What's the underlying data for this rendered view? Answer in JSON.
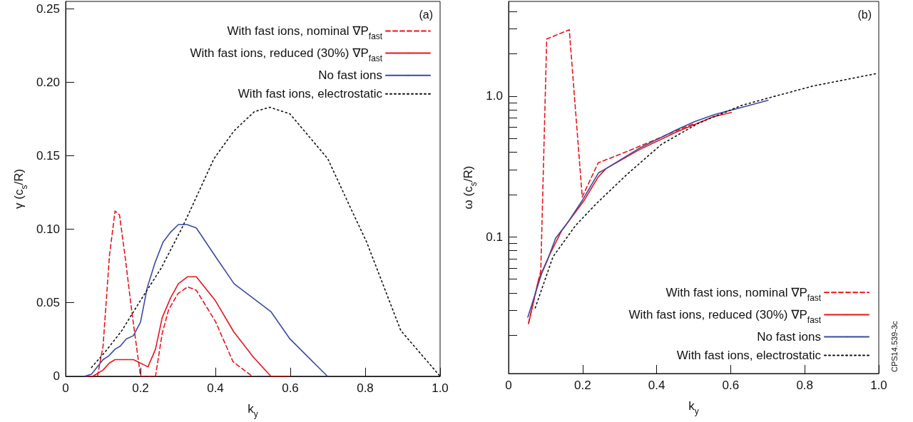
{
  "chart_data": [
    {
      "type": "line",
      "xlabel": "k$_{y}$",
      "ylabel": "γ (c$_{s}$/R)",
      "annotations": [
        "(a)"
      ],
      "xlim": [
        0,
        1
      ],
      "ylim": [
        0,
        0.255
      ],
      "xticks": [
        0,
        {
          "value": 0.2,
          "label": "0.2"
        },
        {
          "value": 0.4,
          "label": "0.4"
        },
        {
          "value": 0.6,
          "label": "0.6"
        },
        {
          "value": 0.8,
          "label": "0.8"
        },
        {
          "value": 1,
          "label": "1.0"
        }
      ],
      "yticks": [
        0,
        0.05,
        {
          "value": 0.1,
          "label": "0.10"
        },
        0.15,
        {
          "value": 0.2,
          "label": "0.20"
        },
        0.25
      ],
      "grid": false,
      "legend": "top right",
      "marker": "none",
      "series": [
        {
          "name": "With fast ions, nominal ∇P$_{fast}$",
          "color": "#e8141b",
          "line_style": "dashed",
          "x": [
            0.085,
            0.1,
            0.117,
            0.132,
            0.144,
            0.16,
            0.177,
            0.2,
            0.24,
            0.258,
            0.275,
            0.3,
            0.326,
            0.349,
            0.4,
            0.447,
            0.498
          ],
          "values": [
            0,
            0.0205,
            0.082,
            0.1124,
            0.1097,
            0.079,
            0.0435,
            0,
            0,
            0.0293,
            0.0452,
            0.0562,
            0.0608,
            0.0585,
            0.0373,
            0.0099,
            0
          ]
        },
        {
          "name": "With fast ions, reduced (30%) ∇P$_{fast}$",
          "color": "#e8141b",
          "line_style": "solid",
          "x": [
            0.053,
            0.073,
            0.1,
            0.117,
            0.132,
            0.181,
            0.22,
            0.24,
            0.258,
            0.281,
            0.301,
            0.326,
            0.349,
            0.4,
            0.449,
            0.501,
            0.548,
            0.599
          ],
          "values": [
            0,
            0,
            0.0042,
            0.009,
            0.0113,
            0.0113,
            0.0064,
            0.0184,
            0.04,
            0.0537,
            0.0629,
            0.0677,
            0.0677,
            0.0514,
            0.0302,
            0.0131,
            0,
            0
          ]
        },
        {
          "name": "No fast ions",
          "color": "#3b4aa3",
          "line_style": "solid",
          "x": [
            0.051,
            0.069,
            0.1,
            0.115,
            0.132,
            0.146,
            0.162,
            0.181,
            0.2,
            0.218,
            0.238,
            0.26,
            0.281,
            0.301,
            0.324,
            0.349,
            0.4,
            0.45,
            0.548,
            0.599,
            0.699
          ],
          "values": [
            0,
            0.0014,
            0.0113,
            0.0138,
            0.0184,
            0.0205,
            0.0254,
            0.0276,
            0.0368,
            0.0603,
            0.0767,
            0.0912,
            0.0982,
            0.1032,
            0.1032,
            0.1009,
            0.0815,
            0.0629,
            0.044,
            0.0254,
            0
          ]
        },
        {
          "name": "With fast ions, electrostatic",
          "color": "#111111",
          "line_style": "dotted",
          "x": [
            0.069,
            0.107,
            0.15,
            0.201,
            0.255,
            0.309,
            0.336,
            0.396,
            0.45,
            0.504,
            0.545,
            0.599,
            0.7,
            0.76,
            0.804,
            0.895,
            1.0
          ],
          "values": [
            0.006,
            0.017,
            0.031,
            0.052,
            0.0735,
            0.1,
            0.1146,
            0.148,
            0.167,
            0.18,
            0.183,
            0.1785,
            0.148,
            0.115,
            0.0912,
            0.0311,
            0
          ]
        }
      ]
    },
    {
      "type": "line",
      "xlabel": "k$_{y}$",
      "ylabel": "ω (c$_{s}$/R)",
      "annotations": [
        "(b)",
        "CPS14.539-3c"
      ],
      "xlim": [
        0,
        1
      ],
      "ylim": [
        0.0107,
        4.7
      ],
      "log": "y",
      "xticks": [
        0,
        {
          "value": 0.2,
          "label": "0.2"
        },
        {
          "value": 0.4,
          "label": "0.4"
        },
        {
          "value": 0.6,
          "label": "0.6"
        },
        {
          "value": 0.8,
          "label": "0.8"
        },
        {
          "value": 1,
          "label": "1.0"
        }
      ],
      "yticks": [
        {
          "value": 0.02,
          "label": null
        },
        {
          "value": 0.03,
          "label": null
        },
        {
          "value": 0.04,
          "label": null
        },
        {
          "value": 0.05,
          "label": null
        },
        {
          "value": 0.06,
          "label": null
        },
        {
          "value": 0.07,
          "label": null
        },
        {
          "value": 0.08,
          "label": null
        },
        {
          "value": 0.09,
          "label": null
        },
        0.1,
        {
          "value": 0.2,
          "label": null
        },
        {
          "value": 0.3,
          "label": null
        },
        {
          "value": 0.4,
          "label": null
        },
        {
          "value": 0.5,
          "label": null
        },
        {
          "value": 0.6,
          "label": null
        },
        {
          "value": 0.7,
          "label": null
        },
        {
          "value": 0.8,
          "label": null
        },
        {
          "value": 0.9,
          "label": null
        },
        {
          "value": 1,
          "label": "1.0"
        },
        {
          "value": 2,
          "label": null
        },
        {
          "value": 3,
          "label": null
        },
        {
          "value": 4,
          "label": null
        }
      ],
      "grid": false,
      "legend": "bottom right",
      "marker": "none",
      "series": [
        {
          "name": "With fast ions, nominal ∇P$_{fast}$",
          "color": "#e8141b",
          "line_style": "dashed",
          "x": [
            0.054,
            0.087,
            0.103,
            0.164,
            0.199,
            0.242,
            0.32,
            0.398,
            0.456,
            0.502
          ],
          "values": [
            0.0245,
            0.0573,
            2.54,
            2.96,
            0.192,
            0.335,
            0.404,
            0.492,
            0.572,
            0.637
          ]
        },
        {
          "name": "With fast ions, reduced (30%) ∇P$_{fast}$",
          "color": "#e8141b",
          "line_style": "solid",
          "x": [
            0.054,
            0.081,
            0.112,
            0.143,
            0.205,
            0.242,
            0.263,
            0.351,
            0.452,
            0.552,
            0.602
          ],
          "values": [
            0.0242,
            0.0498,
            0.0757,
            0.11,
            0.183,
            0.266,
            0.305,
            0.413,
            0.554,
            0.712,
            0.765
          ]
        },
        {
          "name": "No fast ions",
          "color": "#3b4aa3",
          "line_style": "solid",
          "x": [
            0.052,
            0.089,
            0.104,
            0.127,
            0.162,
            0.2,
            0.243,
            0.263,
            0.351,
            0.456,
            0.502,
            0.556,
            0.629,
            0.701
          ],
          "values": [
            0.0269,
            0.0546,
            0.0673,
            0.0977,
            0.129,
            0.183,
            0.285,
            0.305,
            0.423,
            0.58,
            0.658,
            0.739,
            0.83,
            0.933
          ]
        },
        {
          "name": "With fast ions, electrostatic",
          "color": "#111111",
          "line_style": "dotted",
          "x": [
            0.072,
            0.12,
            0.181,
            0.236,
            0.32,
            0.413,
            0.514,
            0.629,
            0.707,
            0.822,
            0.998
          ],
          "values": [
            0.0313,
            0.0722,
            0.1205,
            0.171,
            0.278,
            0.454,
            0.643,
            0.857,
            0.977,
            1.178,
            1.452
          ]
        }
      ]
    }
  ]
}
